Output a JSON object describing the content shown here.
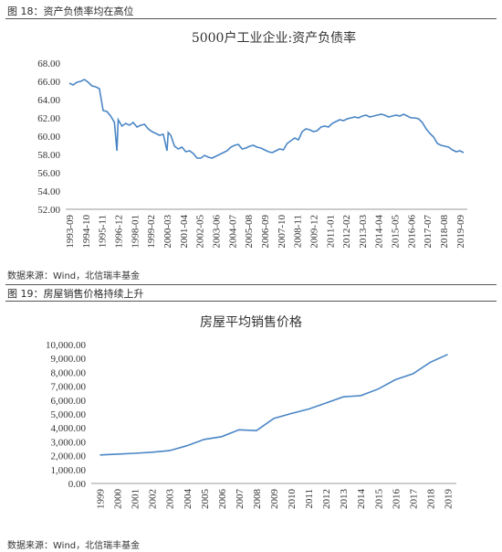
{
  "figure1": {
    "caption": "图 18：资产负债率均在高位",
    "source": "数据来源：Wind，北信瑞丰基金"
  },
  "figure2": {
    "caption": "图 19：房屋销售价格持续上升",
    "source": "数据来源：Wind，北信瑞丰基金"
  },
  "chart_data": [
    {
      "type": "line",
      "title": "5000户工业企业:资产负债率",
      "xlabel": "",
      "ylabel": "",
      "ylim": [
        52,
        68
      ],
      "yticks": [
        "68.00",
        "66.00",
        "64.00",
        "62.00",
        "60.00",
        "58.00",
        "56.00",
        "54.00",
        "52.00"
      ],
      "xticks": [
        "1993-09",
        "1994-10",
        "1995-11",
        "1996-12",
        "1998-01",
        "1999-02",
        "2000-03",
        "2001-04",
        "2002-05",
        "2003-06",
        "2004-07",
        "2005-08",
        "2006-09",
        "2007-10",
        "2008-11",
        "2009-12",
        "2011-01",
        "2012-02",
        "2013-03",
        "2014-04",
        "2015-05",
        "2016-06",
        "2017-07",
        "2018-08",
        "2019-09"
      ],
      "grid": false,
      "series": [
        {
          "x": [
            "1993-09",
            "1993-12",
            "1994-03",
            "1994-06",
            "1994-09",
            "1994-12",
            "1995-03",
            "1995-06",
            "1995-09",
            "1995-12",
            "1996-03",
            "1996-06",
            "1996-09",
            "1996-11",
            "1996-12",
            "1997-03",
            "1997-06",
            "1997-09",
            "1997-12",
            "1998-03",
            "1998-06",
            "1998-09",
            "1998-12",
            "1999-03",
            "1999-06",
            "1999-09",
            "1999-12",
            "2000-03",
            "2000-04",
            "2000-06",
            "2000-09",
            "2000-12",
            "2001-03",
            "2001-06",
            "2001-09",
            "2001-12",
            "2002-03",
            "2002-06",
            "2002-09",
            "2002-12",
            "2003-03",
            "2003-06",
            "2003-09",
            "2003-12",
            "2004-03",
            "2004-06",
            "2004-09",
            "2004-12",
            "2005-03",
            "2005-06",
            "2005-09",
            "2005-12",
            "2006-03",
            "2006-06",
            "2006-09",
            "2006-12",
            "2007-03",
            "2007-06",
            "2007-09",
            "2007-12",
            "2008-03",
            "2008-06",
            "2008-09",
            "2008-12",
            "2009-03",
            "2009-06",
            "2009-09",
            "2009-12",
            "2010-03",
            "2010-06",
            "2010-09",
            "2010-12",
            "2011-03",
            "2011-06",
            "2011-09",
            "2011-12",
            "2012-03",
            "2012-06",
            "2012-09",
            "2012-12",
            "2013-03",
            "2013-06",
            "2013-09",
            "2013-12",
            "2014-03",
            "2014-06",
            "2014-09",
            "2014-12",
            "2015-03",
            "2015-06",
            "2015-09",
            "2015-12",
            "2016-03",
            "2016-06",
            "2016-09",
            "2016-12",
            "2017-03",
            "2017-06",
            "2017-09",
            "2017-12",
            "2018-03",
            "2018-06",
            "2018-09",
            "2018-12",
            "2019-03",
            "2019-06",
            "2019-09",
            "2019-12"
          ],
          "values": [
            65.8,
            65.6,
            65.9,
            66.0,
            66.2,
            65.9,
            65.5,
            65.4,
            65.2,
            62.8,
            62.7,
            62.2,
            61.5,
            58.4,
            61.8,
            61.1,
            61.4,
            61.2,
            61.5,
            61.0,
            61.2,
            61.3,
            60.8,
            60.5,
            60.3,
            60.1,
            60.2,
            58.4,
            60.4,
            60.1,
            58.9,
            58.6,
            58.8,
            58.3,
            58.4,
            58.1,
            57.6,
            57.6,
            57.9,
            57.7,
            57.6,
            57.8,
            58.0,
            58.2,
            58.4,
            58.8,
            59.0,
            59.1,
            58.6,
            58.7,
            58.9,
            59.0,
            58.8,
            58.7,
            58.5,
            58.3,
            58.2,
            58.4,
            58.6,
            58.5,
            59.2,
            59.5,
            59.8,
            59.6,
            60.5,
            60.8,
            60.7,
            60.5,
            60.6,
            61.0,
            61.1,
            61.0,
            61.4,
            61.6,
            61.8,
            61.7,
            61.9,
            62.0,
            62.1,
            62.0,
            62.2,
            62.3,
            62.1,
            62.2,
            62.3,
            62.4,
            62.3,
            62.1,
            62.2,
            62.3,
            62.2,
            62.4,
            62.2,
            62.0,
            62.0,
            61.9,
            61.5,
            60.8,
            60.3,
            59.9,
            59.2,
            59.0,
            58.9,
            58.8,
            58.5,
            58.3,
            58.4,
            58.2
          ]
        }
      ]
    },
    {
      "type": "line",
      "title": "房屋平均销售价格",
      "xlabel": "",
      "ylabel": "",
      "ylim": [
        0,
        10000
      ],
      "yticks": [
        "10,000.00",
        "9,000.00",
        "8,000.00",
        "7,000.00",
        "6,000.00",
        "5,000.00",
        "4,000.00",
        "3,000.00",
        "2,000.00",
        "1,000.00",
        "0.00"
      ],
      "categories": [
        "1999",
        "2000",
        "2001",
        "2002",
        "2003",
        "2004",
        "2005",
        "2006",
        "2007",
        "2008",
        "2009",
        "2010",
        "2011",
        "2012",
        "2013",
        "2014",
        "2015",
        "2016",
        "2017",
        "2018",
        "2019"
      ],
      "grid": false,
      "series": [
        {
          "values": [
            2053,
            2112,
            2170,
            2250,
            2359,
            2714,
            3168,
            3367,
            3864,
            3800,
            4681,
            5032,
            5357,
            5791,
            6237,
            6324,
            6793,
            7476,
            7892,
            8726,
            9287
          ]
        }
      ]
    }
  ]
}
